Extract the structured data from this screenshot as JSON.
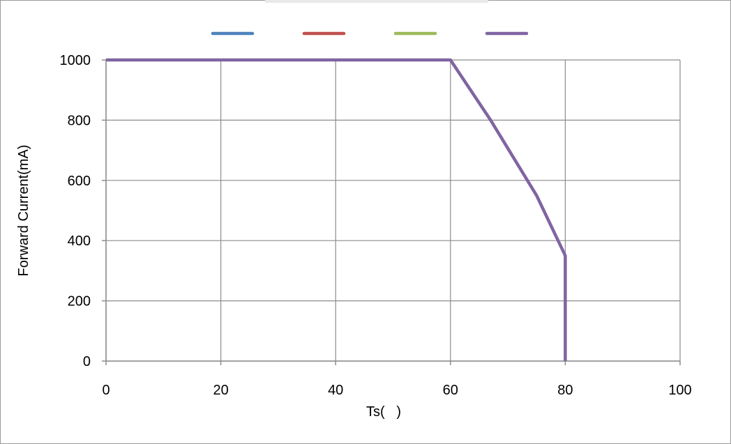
{
  "chart_data": {
    "type": "line",
    "title": "",
    "xlabel": "Ts(   )",
    "ylabel": "Forward Current(mA)",
    "xlim": [
      0,
      100
    ],
    "ylim": [
      0,
      1000
    ],
    "x_ticks": [
      0,
      20,
      40,
      60,
      80,
      100
    ],
    "y_ticks": [
      0,
      200,
      400,
      600,
      800,
      1000
    ],
    "grid": true,
    "legend_position": "top",
    "series": [
      {
        "color": "#4f81bd",
        "points": []
      },
      {
        "color": "#c0504d",
        "points": []
      },
      {
        "color": "#9bbb59",
        "points": []
      },
      {
        "color": "#8064a2",
        "points": [
          [
            0,
            1000
          ],
          [
            60,
            1000
          ],
          [
            67,
            800
          ],
          [
            75,
            550
          ],
          [
            80,
            350
          ],
          [
            80,
            0
          ]
        ]
      }
    ]
  }
}
